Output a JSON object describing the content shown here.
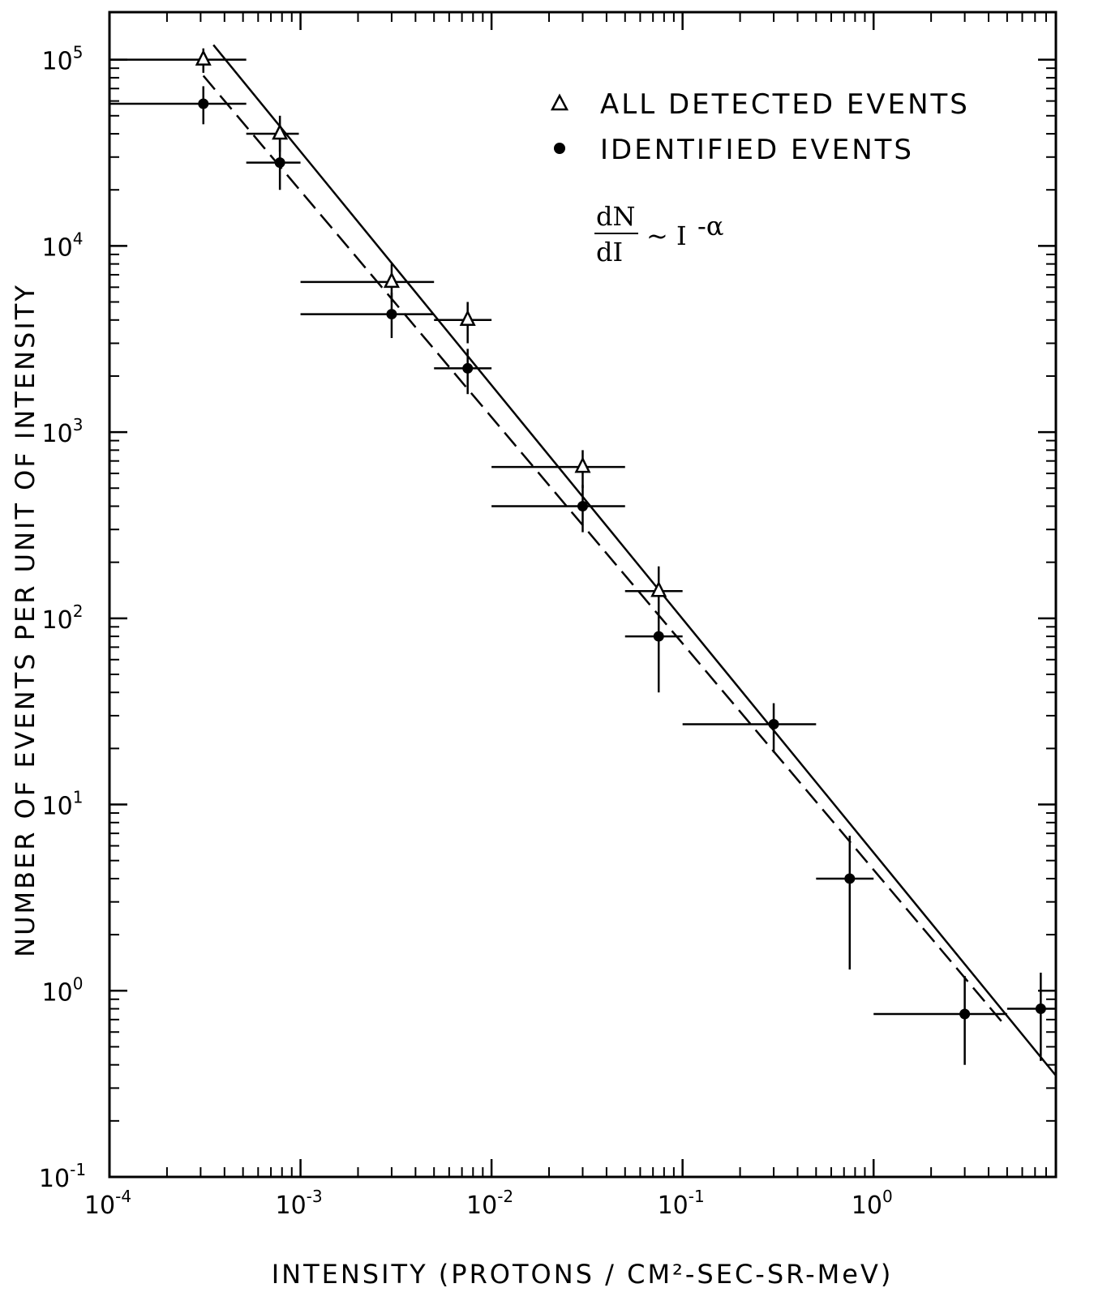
{
  "chart_data": {
    "type": "scatter",
    "title": "",
    "xlabel": "INTENSITY (PROTONS / CM²-SEC-SR-MeV)",
    "ylabel": "NUMBER OF EVENTS PER UNIT OF INTENSITY",
    "x_scale": "log",
    "y_scale": "log",
    "xlim": [
      0.0001,
      9.0
    ],
    "ylim": [
      0.1,
      180000
    ],
    "x_ticks": [
      {
        "value": 0.0001,
        "base": "10",
        "exp": "-4"
      },
      {
        "value": 0.001,
        "base": "10",
        "exp": "-3"
      },
      {
        "value": 0.01,
        "base": "10",
        "exp": "-2"
      },
      {
        "value": 0.1,
        "base": "10",
        "exp": "-1"
      },
      {
        "value": 1,
        "base": "10",
        "exp": "0"
      }
    ],
    "y_ticks": [
      {
        "value": 0.1,
        "base": "10",
        "exp": "-1"
      },
      {
        "value": 1,
        "base": "10",
        "exp": "0"
      },
      {
        "value": 10,
        "base": "10",
        "exp": "1"
      },
      {
        "value": 100,
        "base": "10",
        "exp": "2"
      },
      {
        "value": 1000,
        "base": "10",
        "exp": "3"
      },
      {
        "value": 10000,
        "base": "10",
        "exp": "4"
      },
      {
        "value": 100000,
        "base": "10",
        "exp": "5"
      }
    ],
    "grid": false,
    "legend_position": "top-right",
    "legend": [
      {
        "marker": "open-triangle",
        "label": "ALL DETECTED EVENTS"
      },
      {
        "marker": "filled-circle",
        "label": "IDENTIFIED EVENTS"
      }
    ],
    "annotation": {
      "numerator": "dN",
      "denominator": "dI",
      "relation": "~ I",
      "exponent": "-α"
    },
    "series": [
      {
        "name": "ALL DETECTED EVENTS",
        "marker": "open-triangle",
        "points": [
          {
            "x": 0.00031,
            "y": 100000,
            "xmin": 0.0001,
            "xmax": 0.00052,
            "ymin": 85000,
            "ymax": 115000
          },
          {
            "x": 0.00078,
            "y": 40000,
            "xmin": 0.00052,
            "xmax": 0.00098,
            "ymin": 32000,
            "ymax": 50000
          },
          {
            "x": 0.003,
            "y": 6400,
            "xmin": 0.001,
            "xmax": 0.005,
            "ymin": 5000,
            "ymax": 8000
          },
          {
            "x": 0.0075,
            "y": 4000,
            "xmin": 0.005,
            "xmax": 0.01,
            "ymin": 3000,
            "ymax": 5000
          },
          {
            "x": 0.03,
            "y": 650,
            "xmin": 0.01,
            "xmax": 0.05,
            "ymin": 500,
            "ymax": 800
          },
          {
            "x": 0.075,
            "y": 140,
            "xmin": 0.05,
            "xmax": 0.1,
            "ymin": 95,
            "ymax": 190
          }
        ]
      },
      {
        "name": "IDENTIFIED EVENTS",
        "marker": "filled-circle",
        "points": [
          {
            "x": 0.00031,
            "y": 58000,
            "xmin": 0.0001,
            "xmax": 0.00052,
            "ymin": 45000,
            "ymax": 72000
          },
          {
            "x": 0.00078,
            "y": 28000,
            "xmin": 0.00052,
            "xmax": 0.001,
            "ymin": 20000,
            "ymax": 38000
          },
          {
            "x": 0.003,
            "y": 4300,
            "xmin": 0.001,
            "xmax": 0.005,
            "ymin": 3200,
            "ymax": 5600
          },
          {
            "x": 0.0075,
            "y": 2200,
            "xmin": 0.005,
            "xmax": 0.01,
            "ymin": 1600,
            "ymax": 2800
          },
          {
            "x": 0.03,
            "y": 400,
            "xmin": 0.01,
            "xmax": 0.05,
            "ymin": 290,
            "ymax": 520
          },
          {
            "x": 0.075,
            "y": 80,
            "xmin": 0.05,
            "xmax": 0.1,
            "ymin": 40,
            "ymax": 130
          },
          {
            "x": 0.3,
            "y": 27,
            "xmin": 0.1,
            "xmax": 0.5,
            "ymin": 19,
            "ymax": 35
          },
          {
            "x": 0.75,
            "y": 4,
            "xmin": 0.5,
            "xmax": 1.0,
            "ymin": 1.3,
            "ymax": 6.8
          },
          {
            "x": 3.0,
            "y": 0.75,
            "xmin": 1.0,
            "xmax": 5.0,
            "ymin": 0.4,
            "ymax": 1.2
          },
          {
            "x": 7.5,
            "y": 0.8,
            "xmin": 5.0,
            "xmax": 9.0,
            "ymin": 0.42,
            "ymax": 1.25
          }
        ]
      }
    ],
    "fit_lines": [
      {
        "style": "solid",
        "x": [
          0.00035,
          9.0
        ],
        "y": [
          120000,
          0.35
        ]
      },
      {
        "style": "dashed",
        "x": [
          0.00031,
          4.7
        ],
        "y": [
          82000,
          0.68
        ]
      }
    ]
  }
}
